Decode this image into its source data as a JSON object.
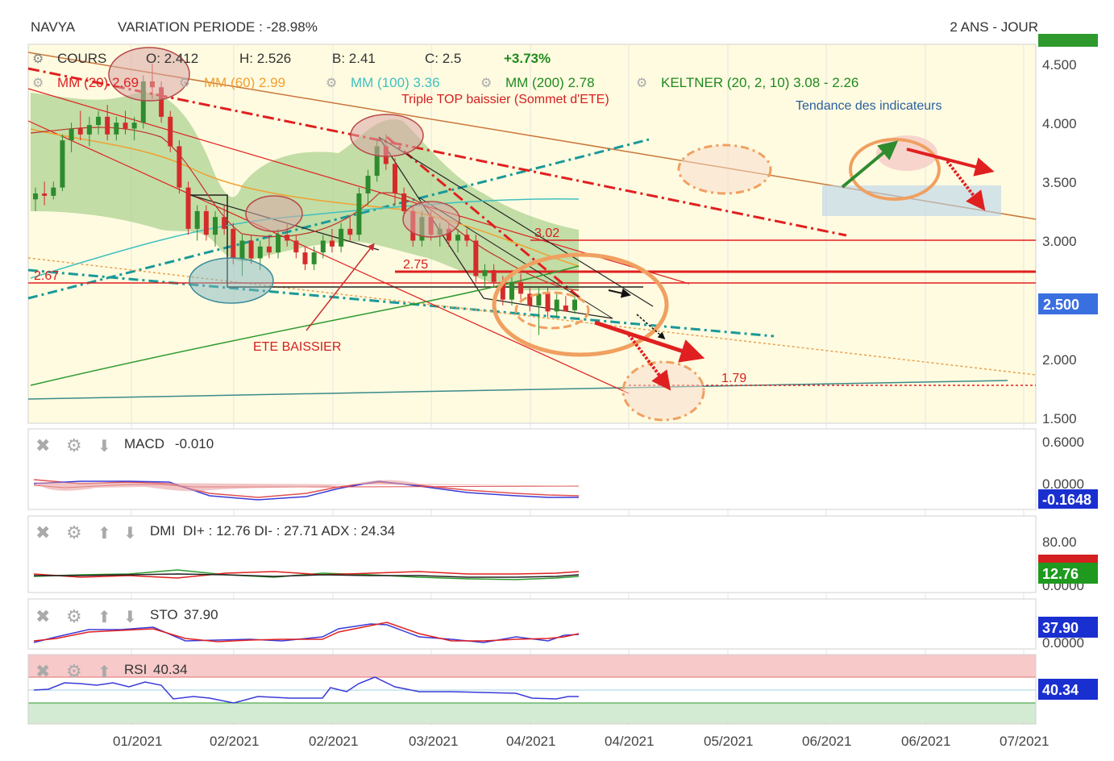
{
  "header": {
    "symbol": "NAVYA",
    "variation": "VARIATION PERIODE : -28.98%",
    "period": "2 ANS - JOUR"
  },
  "ohlc": {
    "cours": "COURS",
    "open": "O: 2.412",
    "high": "H: 2.526",
    "bid": "B: 2.41",
    "close": "C: 2.5",
    "change": "+3.73%"
  },
  "indicators": {
    "mm20": "MM (20)  2.69",
    "mm60": "MM (60)  2.99",
    "mm100": "MM (100)  3.36",
    "mm200": "MM (200)  2.78",
    "keltner": "KELTNER (20, 2, 10)  3.08 - 2.26"
  },
  "annotations": {
    "triple_top": "Triple TOP baissier (Sommet d'ETE)",
    "tendance": "Tendance des indicateurs",
    "ete": "ETE BAISSIER",
    "level_302": "3.02",
    "level_275": "2.75",
    "level_267": "2.67",
    "level_179": "1.79"
  },
  "price_axis": {
    "ticks": [
      "4.500",
      "4.000",
      "3.500",
      "3.000",
      "2.000",
      "1.500"
    ],
    "current": "2.500"
  },
  "macd": {
    "label": "MACD",
    "value": "-0.010",
    "ticks": [
      "0.6000",
      "0.0000"
    ],
    "badge": "-0.1648"
  },
  "dmi": {
    "label": "DMI",
    "value": "DI+ : 12.76 DI- : 27.71 ADX : 24.34",
    "ticks": [
      "80.00",
      "0.0000"
    ],
    "badge_red": "27.71",
    "badge_green": "12.76"
  },
  "sto": {
    "label": "STO",
    "value": "37.90",
    "ticks": [
      "0.0000"
    ],
    "badge": "37.90"
  },
  "rsi": {
    "label": "RSI",
    "value": "40.34",
    "badge": "40.34"
  },
  "x_axis": [
    "01/2021",
    "02/2021",
    "02/2021",
    "03/2021",
    "04/2021",
    "04/2021",
    "05/2021",
    "06/2021",
    "06/2021",
    "07/2021"
  ],
  "colors": {
    "up": "#2e8b2e",
    "down": "#d42b2b",
    "keltner_fill": "#a8d08d",
    "bg_yellow": "#fffbe0",
    "mm20": "#e02020",
    "mm60": "#f0a030",
    "mm100": "#40c0c0",
    "mm200": "#2e9a2e",
    "current_badge": "#3a6fe0"
  },
  "chart_data": {
    "type": "candlestick",
    "y_unit": "EUR",
    "ylim": [
      1.5,
      4.6
    ],
    "candles": [
      {
        "o": 3.35,
        "h": 3.45,
        "l": 3.25,
        "c": 3.4
      },
      {
        "o": 3.4,
        "h": 3.5,
        "l": 3.3,
        "c": 3.38
      },
      {
        "o": 3.38,
        "h": 3.5,
        "l": 3.35,
        "c": 3.45
      },
      {
        "o": 3.45,
        "h": 3.9,
        "l": 3.42,
        "c": 3.85
      },
      {
        "o": 3.85,
        "h": 4.0,
        "l": 3.75,
        "c": 3.95
      },
      {
        "o": 3.95,
        "h": 4.1,
        "l": 3.85,
        "c": 3.9
      },
      {
        "o": 3.9,
        "h": 4.05,
        "l": 3.8,
        "c": 3.98
      },
      {
        "o": 3.98,
        "h": 4.1,
        "l": 3.9,
        "c": 4.05
      },
      {
        "o": 4.05,
        "h": 4.15,
        "l": 3.85,
        "c": 3.9
      },
      {
        "o": 3.9,
        "h": 4.05,
        "l": 3.85,
        "c": 4.0
      },
      {
        "o": 4.0,
        "h": 4.1,
        "l": 3.9,
        "c": 3.95
      },
      {
        "o": 3.95,
        "h": 4.05,
        "l": 3.85,
        "c": 4.0
      },
      {
        "o": 4.0,
        "h": 4.4,
        "l": 3.95,
        "c": 4.35
      },
      {
        "o": 4.35,
        "h": 4.5,
        "l": 4.2,
        "c": 4.3
      },
      {
        "o": 4.3,
        "h": 4.35,
        "l": 4.0,
        "c": 4.05
      },
      {
        "o": 4.05,
        "h": 4.1,
        "l": 3.75,
        "c": 3.8
      },
      {
        "o": 3.8,
        "h": 3.85,
        "l": 3.4,
        "c": 3.45
      },
      {
        "o": 3.45,
        "h": 3.5,
        "l": 3.05,
        "c": 3.1
      },
      {
        "o": 3.1,
        "h": 3.3,
        "l": 3.0,
        "c": 3.25
      },
      {
        "o": 3.25,
        "h": 3.3,
        "l": 3.0,
        "c": 3.05
      },
      {
        "o": 3.05,
        "h": 3.25,
        "l": 2.95,
        "c": 3.2
      },
      {
        "o": 3.2,
        "h": 3.3,
        "l": 3.05,
        "c": 3.1
      },
      {
        "o": 3.1,
        "h": 3.15,
        "l": 2.8,
        "c": 2.85
      },
      {
        "o": 2.85,
        "h": 3.05,
        "l": 2.7,
        "c": 3.0
      },
      {
        "o": 3.0,
        "h": 3.05,
        "l": 2.8,
        "c": 2.85
      },
      {
        "o": 2.85,
        "h": 3.0,
        "l": 2.75,
        "c": 2.95
      },
      {
        "o": 2.95,
        "h": 3.05,
        "l": 2.85,
        "c": 2.9
      },
      {
        "o": 2.9,
        "h": 3.1,
        "l": 2.85,
        "c": 3.05
      },
      {
        "o": 3.05,
        "h": 3.15,
        "l": 2.95,
        "c": 3.0
      },
      {
        "o": 3.0,
        "h": 3.05,
        "l": 2.85,
        "c": 2.9
      },
      {
        "o": 2.9,
        "h": 2.95,
        "l": 2.75,
        "c": 2.8
      },
      {
        "o": 2.8,
        "h": 2.95,
        "l": 2.75,
        "c": 2.9
      },
      {
        "o": 2.9,
        "h": 3.05,
        "l": 2.85,
        "c": 3.0
      },
      {
        "o": 3.0,
        "h": 3.1,
        "l": 2.9,
        "c": 2.95
      },
      {
        "o": 2.95,
        "h": 3.15,
        "l": 2.9,
        "c": 3.1
      },
      {
        "o": 3.1,
        "h": 3.2,
        "l": 3.0,
        "c": 3.05
      },
      {
        "o": 3.05,
        "h": 3.45,
        "l": 3.0,
        "c": 3.4
      },
      {
        "o": 3.4,
        "h": 3.6,
        "l": 3.3,
        "c": 3.55
      },
      {
        "o": 3.55,
        "h": 3.85,
        "l": 3.5,
        "c": 3.8
      },
      {
        "o": 3.8,
        "h": 3.9,
        "l": 3.6,
        "c": 3.65
      },
      {
        "o": 3.65,
        "h": 3.7,
        "l": 3.3,
        "c": 3.4
      },
      {
        "o": 3.4,
        "h": 3.45,
        "l": 3.2,
        "c": 3.25
      },
      {
        "o": 3.25,
        "h": 3.3,
        "l": 2.95,
        "c": 3.0
      },
      {
        "o": 3.0,
        "h": 3.25,
        "l": 2.95,
        "c": 3.2
      },
      {
        "o": 3.2,
        "h": 3.25,
        "l": 3.0,
        "c": 3.05
      },
      {
        "o": 3.05,
        "h": 3.15,
        "l": 2.95,
        "c": 3.1
      },
      {
        "o": 3.1,
        "h": 3.15,
        "l": 2.95,
        "c": 3.0
      },
      {
        "o": 3.0,
        "h": 3.1,
        "l": 2.9,
        "c": 3.05
      },
      {
        "o": 3.05,
        "h": 3.1,
        "l": 2.95,
        "c": 3.0
      },
      {
        "o": 3.0,
        "h": 3.05,
        "l": 2.65,
        "c": 2.7
      },
      {
        "o": 2.7,
        "h": 2.8,
        "l": 2.6,
        "c": 2.75
      },
      {
        "o": 2.75,
        "h": 2.8,
        "l": 2.6,
        "c": 2.65
      },
      {
        "o": 2.65,
        "h": 2.7,
        "l": 2.45,
        "c": 2.5
      },
      {
        "o": 2.5,
        "h": 2.7,
        "l": 2.45,
        "c": 2.65
      },
      {
        "o": 2.65,
        "h": 2.72,
        "l": 2.5,
        "c": 2.55
      },
      {
        "o": 2.55,
        "h": 2.6,
        "l": 2.4,
        "c": 2.45
      },
      {
        "o": 2.45,
        "h": 2.6,
        "l": 2.2,
        "c": 2.55
      },
      {
        "o": 2.55,
        "h": 2.6,
        "l": 2.35,
        "c": 2.4
      },
      {
        "o": 2.4,
        "h": 2.55,
        "l": 2.35,
        "c": 2.5
      },
      {
        "o": 2.45,
        "h": 2.53,
        "l": 2.4,
        "c": 2.4
      },
      {
        "o": 2.41,
        "h": 2.53,
        "l": 2.38,
        "c": 2.5
      }
    ]
  }
}
